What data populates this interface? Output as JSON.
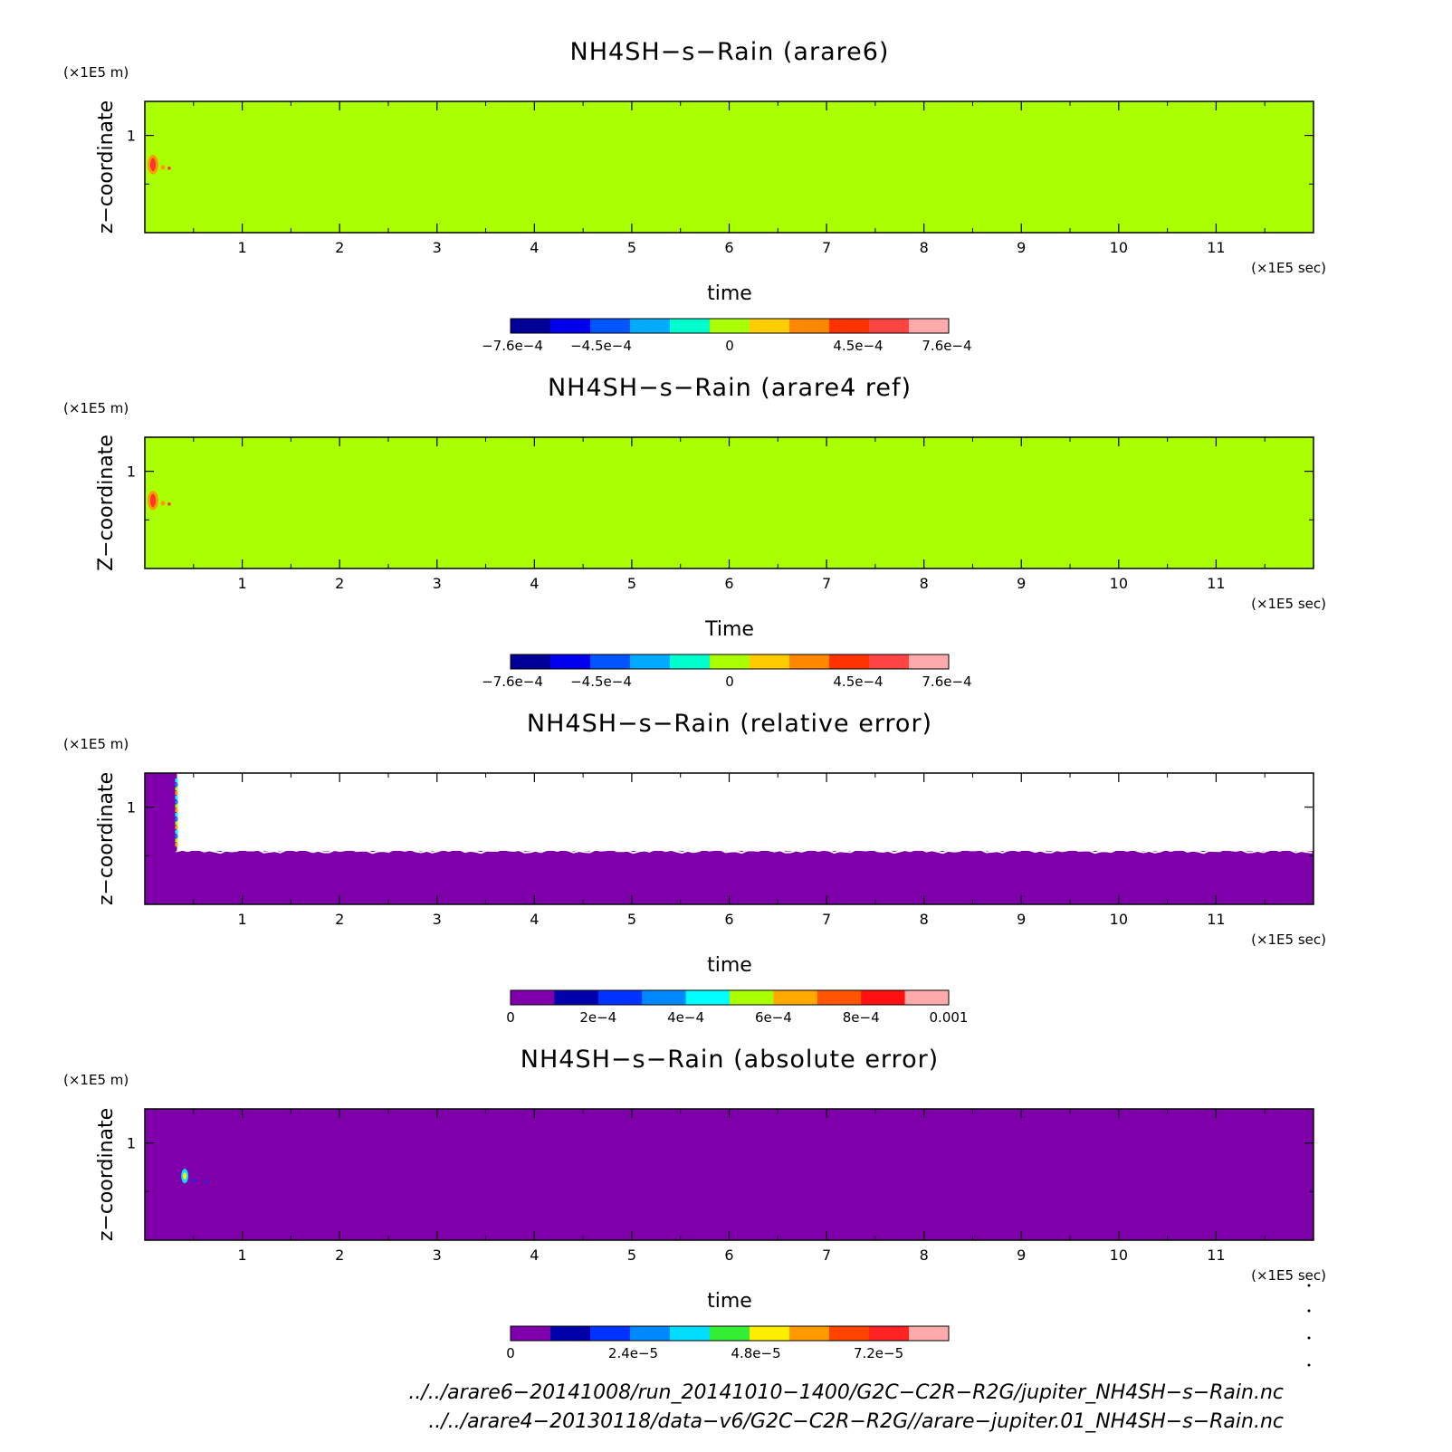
{
  "colors": {
    "green": "#aaff00",
    "purple": "#7f00aa",
    "white": "#ffffff",
    "orange": "#ff9900",
    "red": "#ff3333"
  },
  "chart_data": [
    {
      "type": "heatmap",
      "title": "NH4SH−s−Rain (arare6)",
      "xlabel": "time",
      "ylabel": "z−coordinate",
      "x_unit": "(×1E5 sec)",
      "y_unit": "(×1E5 m)",
      "xlim": [
        0,
        12
      ],
      "ylim": [
        0,
        1.35
      ],
      "x_ticks": [
        "1",
        "2",
        "3",
        "4",
        "5",
        "6",
        "7",
        "8",
        "9",
        "10",
        "11"
      ],
      "y_ticks": [
        "1"
      ],
      "background_value": 0,
      "features": [
        {
          "x_range": [
            0.0,
            0.25
          ],
          "y_range": [
            0.6,
            0.8
          ],
          "value": 0.0005
        }
      ],
      "colorbar": {
        "labels": [
          "−7.6e−4",
          "−4.5e−4",
          "0",
          "4.5e−4",
          "7.6e−4"
        ],
        "colors": [
          "#000099",
          "#0000ee",
          "#0055ff",
          "#00aaff",
          "#00ffcc",
          "#aaff00",
          "#ffcc00",
          "#ff8800",
          "#ff3300",
          "#ff4444",
          "#ffaaaa"
        ]
      }
    },
    {
      "type": "heatmap",
      "title": "NH4SH−s−Rain (arare4 ref)",
      "xlabel": "Time",
      "ylabel": "Z−coordinate",
      "x_unit": "(×1E5 sec)",
      "y_unit": "(×1E5 m)",
      "xlim": [
        0,
        12
      ],
      "ylim": [
        0,
        1.35
      ],
      "x_ticks": [
        "1",
        "2",
        "3",
        "4",
        "5",
        "6",
        "7",
        "8",
        "9",
        "10",
        "11"
      ],
      "y_ticks": [
        "1"
      ],
      "background_value": 0,
      "features": [
        {
          "x_range": [
            0.0,
            0.25
          ],
          "y_range": [
            0.6,
            0.8
          ],
          "value": 0.0005
        }
      ],
      "colorbar": {
        "labels": [
          "−7.6e−4",
          "−4.5e−4",
          "0",
          "4.5e−4",
          "7.6e−4"
        ],
        "colors": [
          "#000099",
          "#0000ee",
          "#0055ff",
          "#00aaff",
          "#00ffcc",
          "#aaff00",
          "#ffcc00",
          "#ff8800",
          "#ff3300",
          "#ff4444",
          "#ffaaaa"
        ]
      }
    },
    {
      "type": "heatmap",
      "title": "NH4SH−s−Rain (relative error)",
      "xlabel": "time",
      "ylabel": "z−coordinate",
      "x_unit": "(×1E5 sec)",
      "y_unit": "(×1E5 m)",
      "xlim": [
        0,
        12
      ],
      "ylim": [
        0,
        1.35
      ],
      "x_ticks": [
        "1",
        "2",
        "3",
        "4",
        "5",
        "6",
        "7",
        "8",
        "9",
        "10",
        "11"
      ],
      "y_ticks": [
        "1"
      ],
      "background_value": 0,
      "undefined_region": {
        "x_range": [
          0.33,
          12
        ],
        "y_range": [
          0.55,
          1.35
        ]
      },
      "colorbar": {
        "labels": [
          "0",
          "2e−4",
          "4e−4",
          "6e−4",
          "8e−4",
          "0.001"
        ],
        "colors": [
          "#7f00aa",
          "#0000aa",
          "#0033ff",
          "#0088ff",
          "#00ffff",
          "#aaff00",
          "#ffaa00",
          "#ff5500",
          "#ff1111",
          "#ffaaaa"
        ]
      }
    },
    {
      "type": "heatmap",
      "title": "NH4SH−s−Rain (absolute error)",
      "xlabel": "time",
      "ylabel": "z−coordinate",
      "x_unit": "(×1E5 sec)",
      "y_unit": "(×1E5 m)",
      "xlim": [
        0,
        12
      ],
      "ylim": [
        0,
        1.35
      ],
      "x_ticks": [
        "1",
        "2",
        "3",
        "4",
        "5",
        "6",
        "7",
        "8",
        "9",
        "10",
        "11"
      ],
      "y_ticks": [
        "1"
      ],
      "background_value": 0,
      "features": [
        {
          "x_range": [
            0.37,
            0.45
          ],
          "y_range": [
            0.6,
            0.72
          ],
          "value": 3e-05
        }
      ],
      "colorbar": {
        "labels": [
          "0",
          "2.4e−5",
          "4.8e−5",
          "7.2e−5"
        ],
        "colors": [
          "#7f00aa",
          "#0000aa",
          "#0033ff",
          "#0088ff",
          "#00ddff",
          "#33ee33",
          "#ffee00",
          "#ff9900",
          "#ff4400",
          "#ff2222",
          "#ffaaaa"
        ]
      }
    }
  ],
  "footer": [
    "../../arare6−20141008/run_20141010−1400/G2C−C2R−R2G/jupiter_NH4SH−s−Rain.nc",
    "../../arare4−20130118/data−v6/G2C−C2R−R2G//arare−jupiter.01_NH4SH−s−Rain.nc"
  ]
}
